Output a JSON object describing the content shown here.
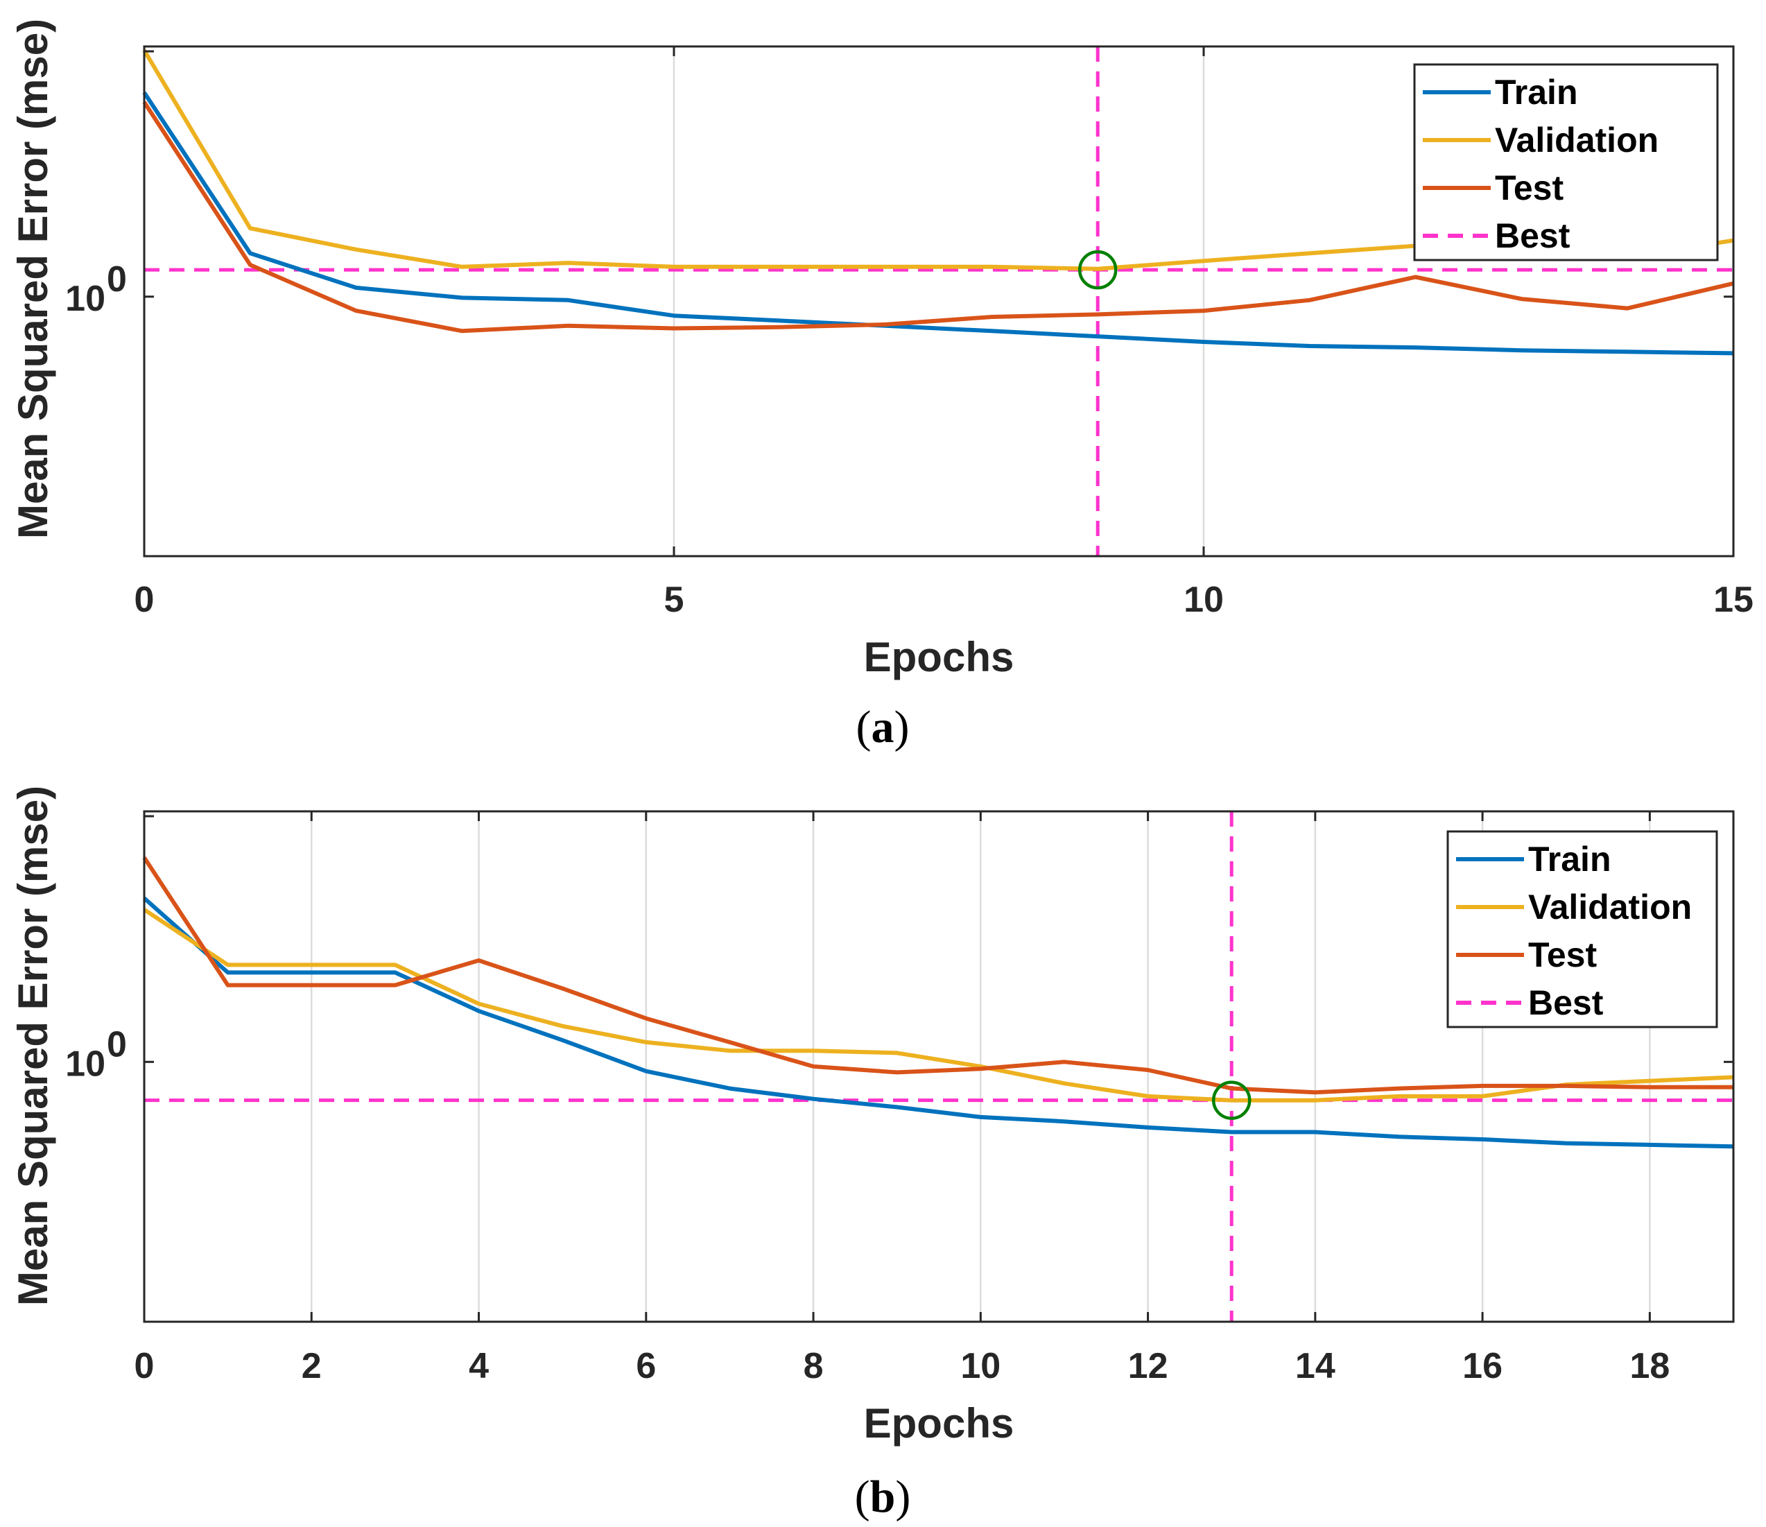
{
  "chart_data": [
    {
      "panel": "a",
      "type": "line",
      "caption_open": "(",
      "caption_letter": "a",
      "caption_close": ")",
      "xlabel": "Epochs",
      "ylabel": "Mean Squared Error  (mse)",
      "yscale": "log",
      "ytick_base": "10",
      "ytick_exp": "0",
      "xlim": [
        0,
        15
      ],
      "ylim": [
        0.32,
        3.0
      ],
      "xticks": [
        0,
        5,
        10,
        15
      ],
      "x": [
        0,
        1,
        2,
        3,
        4,
        5,
        6,
        7,
        8,
        9,
        10,
        11,
        12,
        13,
        14,
        15
      ],
      "series": [
        {
          "name": "Train",
          "color": "#0072BD",
          "values": [
            2.45,
            1.21,
            1.04,
            0.995,
            0.985,
            0.92,
            0.9,
            0.88,
            0.86,
            0.84,
            0.82,
            0.805,
            0.8,
            0.79,
            0.785,
            0.78
          ]
        },
        {
          "name": "Validation",
          "color": "#EDB120",
          "values": [
            2.95,
            1.35,
            1.23,
            1.14,
            1.16,
            1.14,
            1.14,
            1.14,
            1.14,
            1.13,
            1.17,
            1.21,
            1.25,
            1.2,
            1.19,
            1.28
          ]
        },
        {
          "name": "Test",
          "color": "#D95319",
          "values": [
            2.35,
            1.15,
            0.94,
            0.86,
            0.88,
            0.87,
            0.875,
            0.885,
            0.915,
            0.925,
            0.94,
            0.985,
            1.09,
            0.99,
            0.95,
            1.06
          ]
        }
      ],
      "best": {
        "label": "Best",
        "color": "#FF33CC",
        "epoch": 9,
        "value": 1.125
      },
      "marker_color": "#008000",
      "legend_location": "top-right"
    },
    {
      "panel": "b",
      "type": "line",
      "caption_open": "(",
      "caption_letter": "b",
      "caption_close": ")",
      "xlabel": "Epochs",
      "ylabel": "Mean Squared Error  (mse)",
      "yscale": "log",
      "ytick_base": "10",
      "ytick_exp": "0",
      "xlim": [
        0,
        19
      ],
      "ylim": [
        0.32,
        3.0
      ],
      "xticks": [
        0,
        2,
        4,
        6,
        8,
        10,
        12,
        14,
        16,
        18
      ],
      "x": [
        0,
        1,
        2,
        3,
        4,
        5,
        6,
        7,
        8,
        9,
        10,
        11,
        12,
        13,
        14,
        15,
        16,
        17,
        18,
        19
      ],
      "series": [
        {
          "name": "Train",
          "color": "#0072BD",
          "values": [
            2.05,
            1.48,
            1.48,
            1.48,
            1.25,
            1.1,
            0.96,
            0.89,
            0.85,
            0.82,
            0.785,
            0.77,
            0.75,
            0.735,
            0.735,
            0.72,
            0.712,
            0.7,
            0.695,
            0.69
          ]
        },
        {
          "name": "Validation",
          "color": "#EDB120",
          "values": [
            1.95,
            1.53,
            1.53,
            1.53,
            1.29,
            1.17,
            1.09,
            1.05,
            1.05,
            1.04,
            0.98,
            0.91,
            0.86,
            0.845,
            0.845,
            0.86,
            0.86,
            0.905,
            0.92,
            0.935
          ]
        },
        {
          "name": "Test",
          "color": "#D95319",
          "values": [
            2.45,
            1.4,
            1.4,
            1.4,
            1.56,
            1.38,
            1.21,
            1.09,
            0.98,
            0.955,
            0.97,
            1.0,
            0.965,
            0.89,
            0.875,
            0.89,
            0.9,
            0.9,
            0.895,
            0.895
          ]
        }
      ],
      "best": {
        "label": "Best",
        "color": "#FF33CC",
        "epoch": 13,
        "value": 0.845
      },
      "marker_color": "#008000",
      "legend_location": "top-right"
    }
  ]
}
